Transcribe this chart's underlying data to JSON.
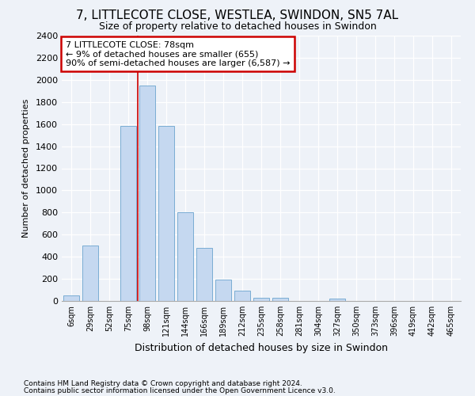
{
  "title_line1": "7, LITTLECOTE CLOSE, WESTLEA, SWINDON, SN5 7AL",
  "title_line2": "Size of property relative to detached houses in Swindon",
  "xlabel": "Distribution of detached houses by size in Swindon",
  "ylabel": "Number of detached properties",
  "footnote1": "Contains HM Land Registry data © Crown copyright and database right 2024.",
  "footnote2": "Contains public sector information licensed under the Open Government Licence v3.0.",
  "bar_labels": [
    "6sqm",
    "29sqm",
    "52sqm",
    "75sqm",
    "98sqm",
    "121sqm",
    "144sqm",
    "166sqm",
    "189sqm",
    "212sqm",
    "235sqm",
    "258sqm",
    "281sqm",
    "304sqm",
    "327sqm",
    "350sqm",
    "373sqm",
    "396sqm",
    "419sqm",
    "442sqm",
    "465sqm"
  ],
  "bar_values": [
    50,
    500,
    0,
    1580,
    1950,
    1580,
    800,
    480,
    190,
    90,
    30,
    30,
    0,
    0,
    20,
    0,
    0,
    0,
    0,
    0,
    0
  ],
  "bar_color": "#c5d8f0",
  "bar_edge_color": "#7aadd4",
  "annotation_text_line1": "7 LITTLECOTE CLOSE: 78sqm",
  "annotation_text_line2": "← 9% of detached houses are smaller (655)",
  "annotation_text_line3": "90% of semi-detached houses are larger (6,587) →",
  "annotation_box_facecolor": "#ffffff",
  "annotation_box_edgecolor": "#cc0000",
  "red_line_x": 3.5,
  "red_line_color": "#cc0000",
  "ylim": [
    0,
    2400
  ],
  "ytick_interval": 200,
  "background_color": "#eef2f8",
  "title1_fontsize": 11,
  "title2_fontsize": 9,
  "ylabel_fontsize": 8,
  "xlabel_fontsize": 9,
  "footnote_fontsize": 6.5
}
